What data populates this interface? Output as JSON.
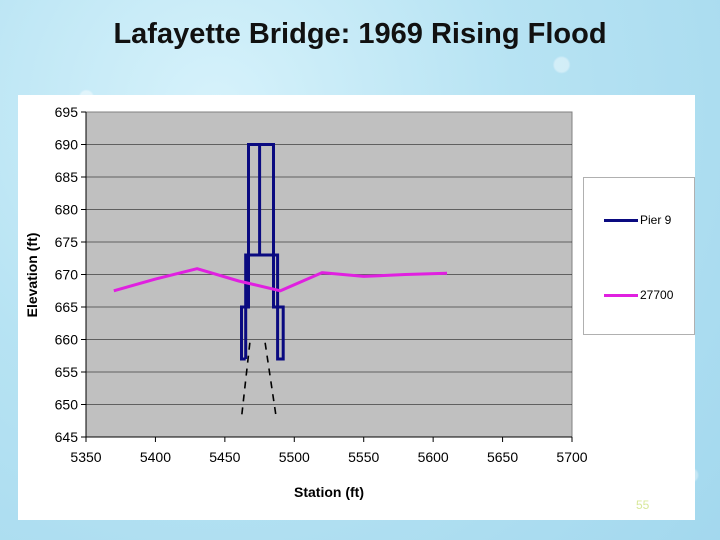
{
  "chart_data": {
    "type": "line",
    "title": "Lafayette Bridge: 1969 Rising Flood",
    "xlabel": "Station (ft)",
    "ylabel": "Elevation (ft)",
    "xlim": [
      5350,
      5700
    ],
    "ylim": [
      645,
      695
    ],
    "xticks": [
      "5350",
      "5400",
      "5450",
      "5500",
      "5550",
      "5600",
      "5650",
      "5700"
    ],
    "yticks": [
      "645",
      "650",
      "655",
      "660",
      "665",
      "670",
      "675",
      "680",
      "685",
      "690",
      "695"
    ],
    "grid": "horizontal",
    "legend_position": "right",
    "series": [
      {
        "name": "Pier 9",
        "color": "#0a0a80",
        "x": [
          5465,
          5465,
          5467,
          5467,
          5475,
          5475,
          5485,
          5485,
          5488,
          5488,
          5492,
          5492,
          5492,
          5488,
          5488,
          5485,
          5485,
          5475,
          5475,
          5467,
          5467,
          5465,
          5465,
          5462,
          5462,
          5465
        ],
        "y": [
          657,
          665,
          665,
          673,
          673,
          690,
          690,
          673,
          673,
          665,
          665,
          657,
          657,
          657,
          665,
          665,
          673,
          673,
          690,
          690,
          673,
          673,
          665,
          665,
          657,
          657
        ]
      },
      {
        "name": "27700",
        "color": "#e020e0",
        "x": [
          5370,
          5400,
          5430,
          5460,
          5490,
          5520,
          5550,
          5580,
          5610
        ],
        "y": [
          667.5,
          669.3,
          670.9,
          669.0,
          667.5,
          670.3,
          669.7,
          670.0,
          670.2
        ]
      }
    ],
    "annotations": [
      {
        "style": "dashed",
        "color": "#000000",
        "x": [
          5468,
          5462
        ],
        "y": [
          659.5,
          648
        ]
      },
      {
        "style": "dashed",
        "color": "#000000",
        "x": [
          5479,
          5487
        ],
        "y": [
          659.5,
          648
        ]
      }
    ]
  },
  "slide": {
    "page_number": "55"
  }
}
